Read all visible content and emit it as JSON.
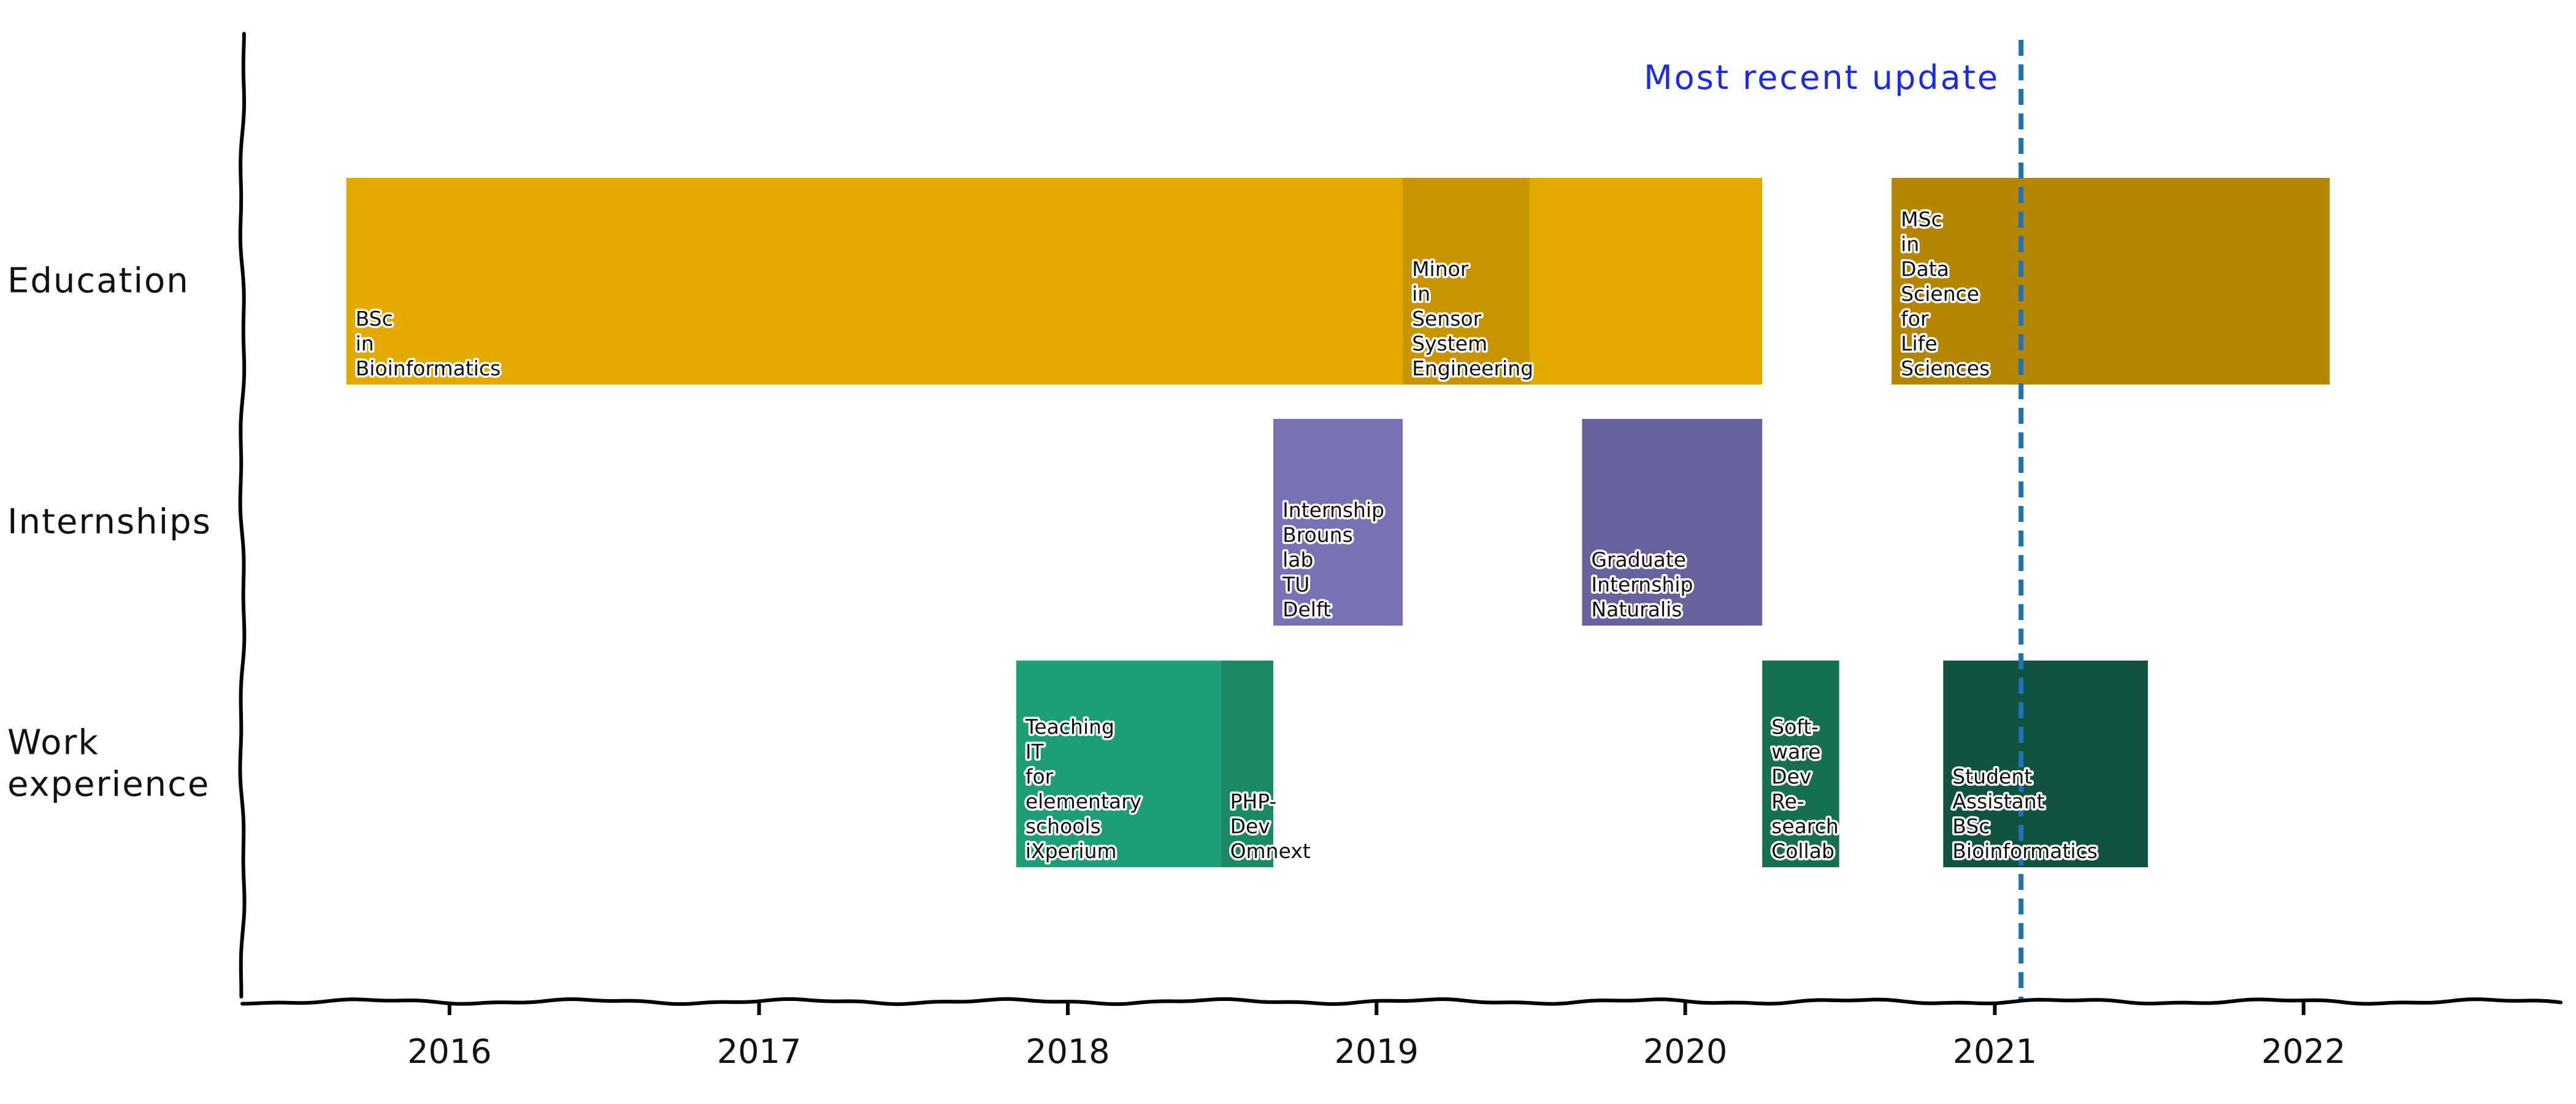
{
  "chart_data": {
    "type": "timeline",
    "categories": [
      "Education",
      "Internships",
      "Work experience"
    ],
    "category_lines": [
      [
        "Education"
      ],
      [
        "Internships"
      ],
      [
        "Work",
        "experience"
      ]
    ],
    "x_ticks": [
      "2016",
      "2017",
      "2018",
      "2019",
      "2020",
      "2021",
      "2022"
    ],
    "xlim": [
      "2015-05-01",
      "2022-11-01"
    ],
    "bars": [
      {
        "category": "Education",
        "label": [
          "BSc",
          "in",
          "Bioinformatics"
        ],
        "start": "2015-09-01",
        "end": "2020-04-01",
        "color": "#E3AB00"
      },
      {
        "category": "Education",
        "label": [
          "Minor",
          "in",
          "Sensor",
          "System",
          "Engineering"
        ],
        "start": "2019-02-01",
        "end": "2019-07-01",
        "color": "#C99400"
      },
      {
        "category": "Education",
        "label": [
          "MSc",
          "in",
          "Data",
          "Science",
          "for",
          "Life",
          "Sciences"
        ],
        "start": "2020-09-01",
        "end": "2022-02-01",
        "color": "#B58603"
      },
      {
        "category": "Internships",
        "label": [
          "Internship",
          "Brouns",
          "lab",
          "TU",
          "Delft"
        ],
        "start": "2018-09-01",
        "end": "2019-02-01",
        "color": "#7672B4"
      },
      {
        "category": "Internships",
        "label": [
          "Graduate",
          "Internship",
          "Naturalis"
        ],
        "start": "2019-09-01",
        "end": "2020-04-01",
        "color": "#65629D"
      },
      {
        "category": "Work experience",
        "label": [
          "Teaching",
          "IT",
          "for",
          "elementary",
          "schools",
          "iXperium"
        ],
        "start": "2017-11-01",
        "end": "2018-07-01",
        "color": "#1D9E76"
      },
      {
        "category": "Work experience",
        "label": [
          "PHP-",
          "Dev",
          "Omnext"
        ],
        "start": "2018-07-01",
        "end": "2018-09-01",
        "color": "#1B8965"
      },
      {
        "category": "Work experience",
        "label": [
          "Soft-",
          "ware",
          "Dev",
          "Re-",
          "search",
          "Collab"
        ],
        "start": "2020-04-01",
        "end": "2020-07-01",
        "color": "#166F52"
      },
      {
        "category": "Work experience",
        "label": [
          "Student",
          "Assistant",
          "BSc",
          "Bioinformatics"
        ],
        "start": "2020-11-01",
        "end": "2021-07-01",
        "color": "#0F5340"
      }
    ],
    "annotation": {
      "label": "Most recent update",
      "date": "2021-02-01",
      "color": "#1E72B8",
      "text_color": "#1A2BE0"
    }
  }
}
